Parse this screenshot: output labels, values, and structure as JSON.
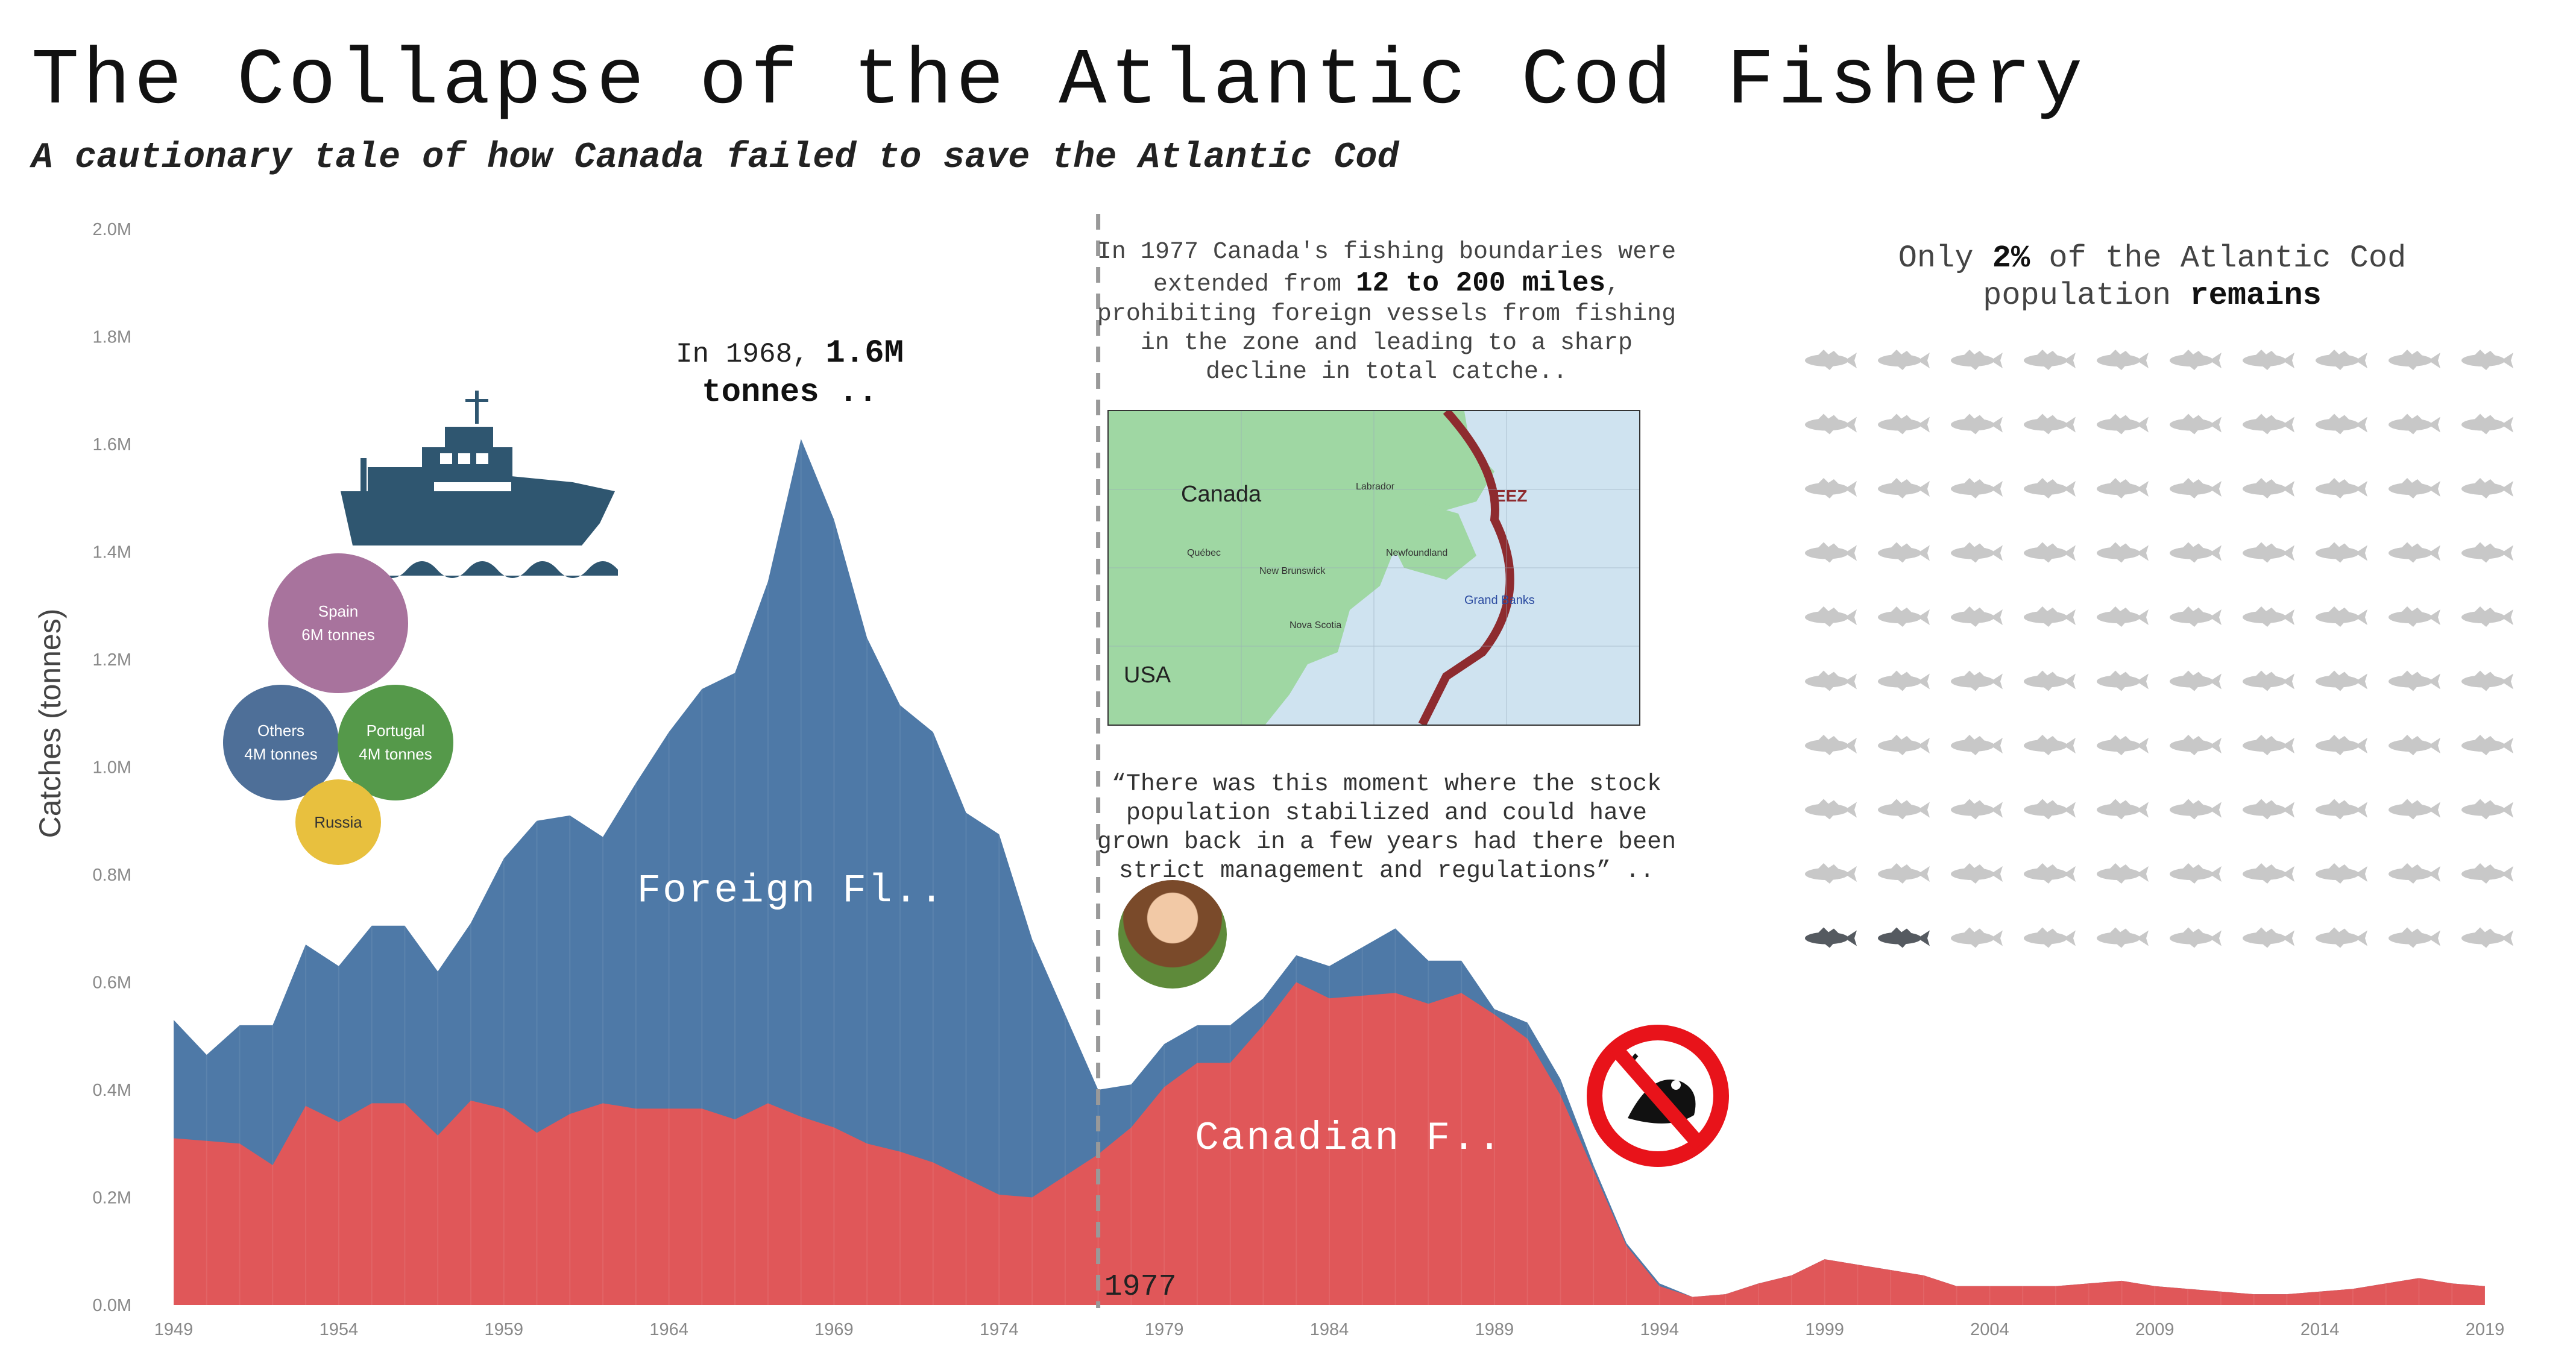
{
  "header": {
    "title": "The Collapse of the Atlantic Cod Fishery",
    "subtitle": "A cautionary tale of how Canada failed to save the Atlantic Cod"
  },
  "annotations": {
    "peak_prefix": "In 1968,",
    "peak_value": "1.6M",
    "peak_suffix": "tonnes ..",
    "eez_text_a": "In 1977 Canada's fishing boundaries were extended from",
    "eez_text_bold": "12 to 200 miles",
    "eez_text_b": ", prohibiting foreign vessels from fishing in the zone and leading to a sharp decline in total catche..",
    "quote": "“There was this moment where the stock population stabilized and could have grown back in a few years had there been strict management and regulations” ..",
    "remains_a": "Only",
    "remains_pct": "2%",
    "remains_b": "of the Atlantic Cod population",
    "remains_c": "remains",
    "marker_1977": "1977"
  },
  "map": {
    "labels": {
      "canada": "Canada",
      "usa": "USA",
      "labrador": "Labrador",
      "quebec": "Québec",
      "new_brunswick": "New Brunswick",
      "newfoundland": "Newfoundland",
      "nova_scotia": "Nova Scotia",
      "grand_banks": "Grand Banks",
      "eez": "EEZ"
    }
  },
  "bubbles": [
    {
      "name": "Spain",
      "value": "6M tonnes",
      "color": "#a8739d"
    },
    {
      "name": "Others",
      "value": "4M tonnes",
      "color": "#4e6f98"
    },
    {
      "name": "Portugal",
      "value": "4M tonnes",
      "color": "#55994a"
    },
    {
      "name": "Russia",
      "value": "",
      "color": "#e8c03e"
    }
  ],
  "fish_grid": {
    "rows": 10,
    "cols": 10,
    "highlighted": 2,
    "highlight_color": "#555a60",
    "base_color": "#c8c8c8",
    "icon": "cod-fish-icon"
  },
  "icons": {
    "boat": "fishing-boat-icon",
    "no_fishing": "no-fishing-icon",
    "photo": "scientist-portrait"
  },
  "chart_data": {
    "type": "area",
    "ylabel": "Catches (tonnes)",
    "ylim": [
      0,
      2000000
    ],
    "yticks": [
      "0.0M",
      "0.2M",
      "0.4M",
      "0.6M",
      "0.8M",
      "1.0M",
      "1.2M",
      "1.4M",
      "1.6M",
      "1.8M",
      "2.0M"
    ],
    "xlim": [
      1949,
      2019
    ],
    "xticks": [
      "1949",
      "1954",
      "1959",
      "1964",
      "1969",
      "1974",
      "1979",
      "1984",
      "1989",
      "1994",
      "1999",
      "2004",
      "2009",
      "2014",
      "2019"
    ],
    "stacked": true,
    "series": [
      {
        "name": "Canadian F..",
        "color": "#e05759",
        "x": [
          1949,
          1950,
          1951,
          1952,
          1953,
          1954,
          1955,
          1956,
          1957,
          1958,
          1959,
          1960,
          1961,
          1962,
          1963,
          1964,
          1965,
          1966,
          1967,
          1968,
          1969,
          1970,
          1971,
          1972,
          1973,
          1974,
          1975,
          1976,
          1977,
          1978,
          1979,
          1980,
          1981,
          1982,
          1983,
          1984,
          1985,
          1986,
          1987,
          1988,
          1989,
          1990,
          1991,
          1992,
          1993,
          1994,
          1995,
          1996,
          1997,
          1998,
          1999,
          2000,
          2001,
          2002,
          2003,
          2004,
          2005,
          2006,
          2007,
          2008,
          2009,
          2010,
          2011,
          2012,
          2013,
          2014,
          2015,
          2016,
          2017,
          2018,
          2019
        ],
        "values": [
          310000,
          305000,
          300000,
          260000,
          370000,
          340000,
          375000,
          375000,
          315000,
          380000,
          365000,
          320000,
          355000,
          375000,
          365000,
          365000,
          365000,
          345000,
          375000,
          350000,
          330000,
          300000,
          285000,
          265000,
          235000,
          205000,
          200000,
          240000,
          280000,
          330000,
          405000,
          450000,
          450000,
          520000,
          600000,
          570000,
          575000,
          580000,
          560000,
          580000,
          540000,
          495000,
          390000,
          250000,
          110000,
          35000,
          15000,
          20000,
          40000,
          55000,
          85000,
          75000,
          65000,
          55000,
          35000,
          35000,
          35000,
          35000,
          40000,
          45000,
          35000,
          30000,
          25000,
          20000,
          20000,
          25000,
          30000,
          40000,
          50000,
          40000,
          35000
        ]
      },
      {
        "name": "Foreign Fl..",
        "color": "#4e79a7",
        "x": [
          1949,
          1950,
          1951,
          1952,
          1953,
          1954,
          1955,
          1956,
          1957,
          1958,
          1959,
          1960,
          1961,
          1962,
          1963,
          1964,
          1965,
          1966,
          1967,
          1968,
          1969,
          1970,
          1971,
          1972,
          1973,
          1974,
          1975,
          1976,
          1977,
          1978,
          1979,
          1980,
          1981,
          1982,
          1983,
          1984,
          1985,
          1986,
          1987,
          1988,
          1989,
          1990,
          1991,
          1992,
          1993,
          1994,
          1995,
          1996,
          1997,
          1998,
          1999,
          2000,
          2001,
          2002,
          2003,
          2004,
          2005,
          2006,
          2007,
          2008,
          2009,
          2010,
          2011,
          2012,
          2013,
          2014,
          2015,
          2016,
          2017,
          2018,
          2019
        ],
        "values": [
          220000,
          160000,
          220000,
          260000,
          300000,
          290000,
          330000,
          330000,
          305000,
          330000,
          465000,
          580000,
          555000,
          495000,
          605000,
          700000,
          780000,
          830000,
          970000,
          1260000,
          1130000,
          940000,
          830000,
          800000,
          680000,
          670000,
          480000,
          300000,
          120000,
          80000,
          80000,
          70000,
          70000,
          50000,
          50000,
          60000,
          90000,
          120000,
          80000,
          60000,
          10000,
          30000,
          30000,
          10000,
          5000,
          5000,
          0,
          0,
          0,
          0,
          0,
          0,
          0,
          0,
          0,
          0,
          0,
          0,
          0,
          0,
          0,
          0,
          0,
          0,
          0,
          0,
          0,
          0,
          0,
          0,
          0
        ]
      }
    ],
    "annotations": [
      {
        "x": 1977,
        "label": "1977",
        "style": "dashed-line"
      },
      {
        "x": 1968,
        "label": "1.6M",
        "style": "peak"
      }
    ]
  }
}
